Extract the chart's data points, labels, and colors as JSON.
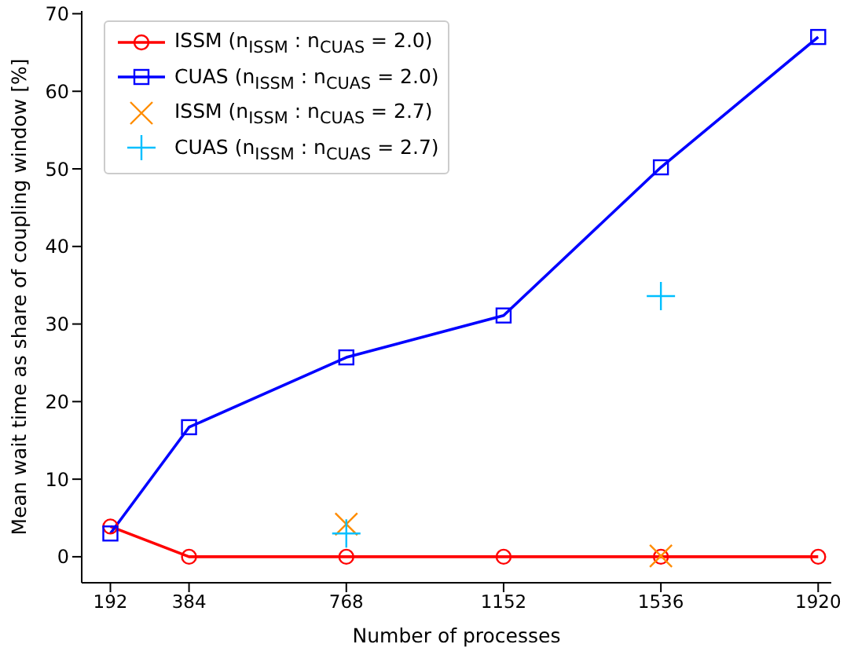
{
  "chart_data": {
    "type": "line",
    "xlabel": "Number of processes",
    "ylabel": "Mean wait time as share of coupling window [%]",
    "xlim": [
      122,
      1952
    ],
    "xticks": [
      192,
      384,
      768,
      1152,
      1536,
      1920
    ],
    "ylim": [
      -3.35,
      70.35
    ],
    "yticks": [
      0,
      10,
      20,
      30,
      40,
      50,
      60,
      70
    ],
    "grid": false,
    "legend": "top left",
    "series": [
      {
        "name": "ISSM (n$_{ISSM}$ : n$_{CUAS}$ = 2.0)",
        "marker": "circle",
        "color": "#ff0000",
        "x": [
          192,
          384,
          768,
          1152,
          1536,
          1920
        ],
        "values": [
          3.9,
          0,
          0,
          0,
          0,
          0
        ]
      },
      {
        "name": "CUAS (n$_{ISSM}$ : n$_{CUAS}$ = 2.0)",
        "marker": "square",
        "color": "#0000ff",
        "x": [
          192,
          384,
          768,
          1152,
          1536,
          1920
        ],
        "values": [
          3.0,
          16.7,
          25.7,
          31.1,
          50.2,
          67.0
        ]
      },
      {
        "name": "ISSM (n$_{ISSM}$ : n$_{CUAS}$ = 2.7)",
        "type": "scatter",
        "marker": "cross",
        "color": "#ff8c00",
        "x": [
          768,
          1536
        ],
        "values": [
          4.2,
          0.1
        ]
      },
      {
        "name": "CUAS (n$_{ISSM}$ : n$_{CUAS}$ = 2.7)",
        "type": "scatter",
        "marker": "plus",
        "color": "#00bfff",
        "x": [
          768,
          1536
        ],
        "values": [
          3.0,
          33.6
        ]
      }
    ]
  }
}
